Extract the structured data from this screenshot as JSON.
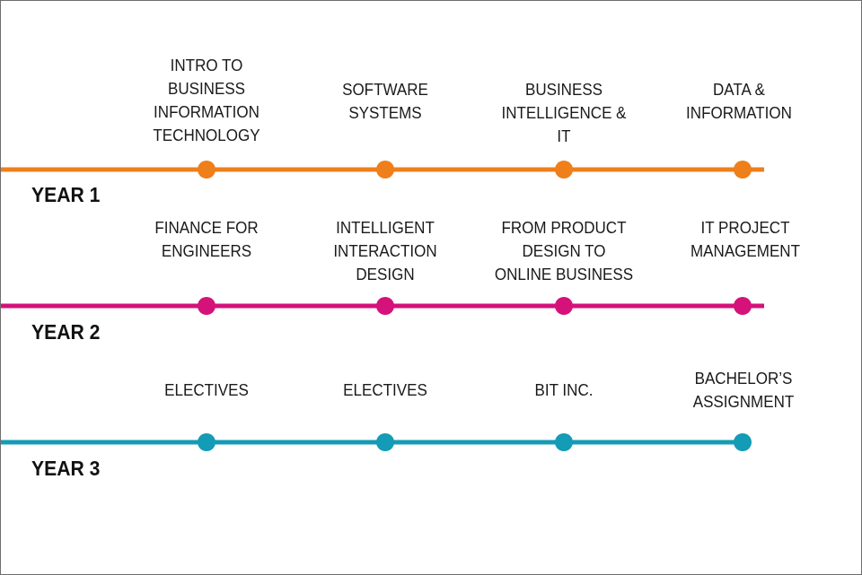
{
  "colors": {
    "year1": "#ee7f1a",
    "year2": "#d4127a",
    "year3": "#149bb5"
  },
  "rows": [
    {
      "year_label": "YEAR 1",
      "courses": [
        "INTRO TO\nBUSINESS\nINFORMATION\nTECHNOLOGY",
        "SOFTWARE\nSYSTEMS",
        "BUSINESS\nINTELLIGENCE & IT",
        "DATA &\nINFORMATION"
      ]
    },
    {
      "year_label": "YEAR 2",
      "courses": [
        "FINANCE FOR\nENGINEERS",
        "INTELLIGENT\nINTERACTION\nDESIGN",
        "FROM PRODUCT\nDESIGN TO\nONLINE BUSINESS",
        "IT PROJECT\nMANAGEMENT"
      ]
    },
    {
      "year_label": "YEAR 3",
      "courses": [
        "ELECTIVES",
        "ELECTIVES",
        "BIT INC.",
        "BACHELOR’S\nASSIGNMENT"
      ]
    }
  ]
}
